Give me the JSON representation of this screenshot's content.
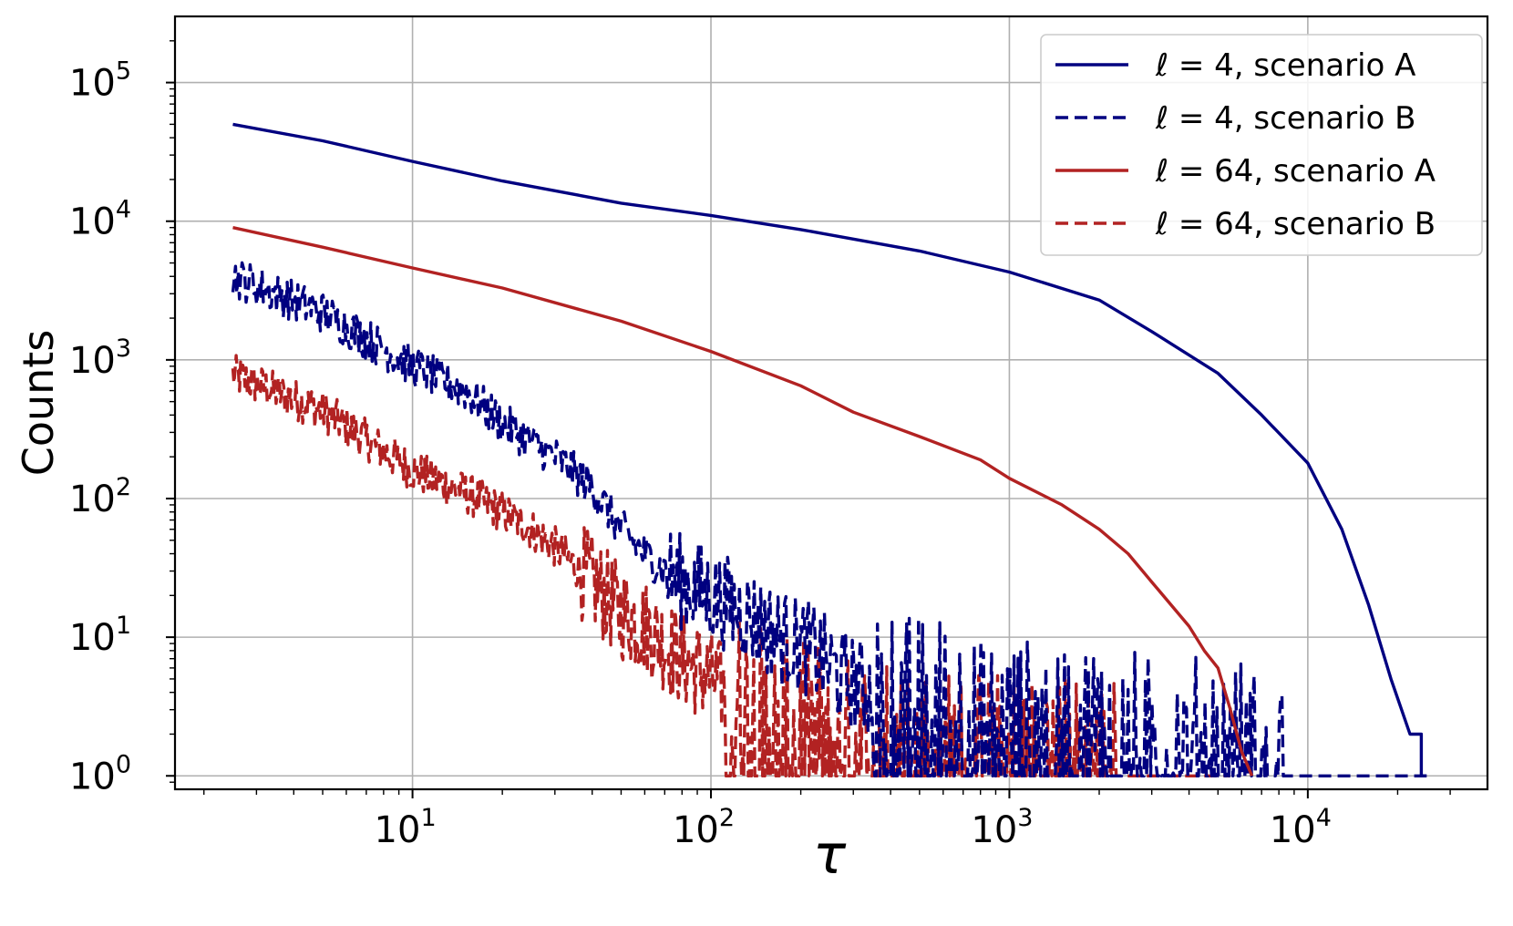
{
  "chart_data": {
    "type": "line",
    "xlabel": "τ",
    "ylabel": "Counts",
    "xscale": "log",
    "yscale": "log",
    "xlim": [
      1.6,
      40000
    ],
    "ylim": [
      0.8,
      300000
    ],
    "grid": true,
    "legend_position": "top-right",
    "x_ticks": [
      {
        "base": "10",
        "exp": "1",
        "value": 10
      },
      {
        "base": "10",
        "exp": "2",
        "value": 100
      },
      {
        "base": "10",
        "exp": "3",
        "value": 1000
      },
      {
        "base": "10",
        "exp": "4",
        "value": 10000
      }
    ],
    "y_ticks": [
      {
        "base": "10",
        "exp": "0",
        "value": 1
      },
      {
        "base": "10",
        "exp": "1",
        "value": 10
      },
      {
        "base": "10",
        "exp": "2",
        "value": 100
      },
      {
        "base": "10",
        "exp": "3",
        "value": 1000
      },
      {
        "base": "10",
        "exp": "4",
        "value": 10000
      },
      {
        "base": "10",
        "exp": "5",
        "value": 100000
      }
    ],
    "series": [
      {
        "name": "ℓ = 4, scenario A",
        "color": "#000080",
        "dash": "solid",
        "x": [
          2.5,
          5,
          10,
          20,
          50,
          100,
          200,
          500,
          1000,
          2000,
          3000,
          5000,
          7000,
          10000,
          13000,
          16000,
          19000,
          22000,
          24000,
          24000,
          25000
        ],
        "y": [
          50000,
          38000,
          27000,
          19500,
          13500,
          11000,
          8700,
          6100,
          4300,
          2700,
          1600,
          800,
          400,
          180,
          60,
          17,
          5,
          2,
          2,
          1,
          1
        ]
      },
      {
        "name": "ℓ = 4, scenario B",
        "color": "#000080",
        "dash": "dashed",
        "x": [
          2.5,
          5,
          10,
          15,
          20,
          30,
          40,
          50,
          60,
          70,
          80,
          100,
          130,
          170,
          220,
          280,
          350,
          450,
          600,
          800,
          1000,
          1500,
          2000,
          3000,
          4000,
          6000,
          8000,
          9000,
          9000,
          12000,
          25000
        ],
        "y": [
          4000,
          2200,
          900,
          600,
          350,
          200,
          120,
          60,
          40,
          30,
          25,
          20,
          15,
          10,
          8,
          5,
          4,
          3,
          3,
          2,
          2,
          2,
          2,
          1.5,
          1.5,
          1.5,
          1.5,
          1.5,
          1,
          1,
          1
        ],
        "noisy": true
      },
      {
        "name": "ℓ = 64, scenario A",
        "color": "#b22222",
        "dash": "solid",
        "x": [
          2.5,
          5,
          10,
          20,
          50,
          100,
          200,
          300,
          500,
          800,
          1000,
          1500,
          2000,
          2500,
          3000,
          4000,
          4500,
          5000,
          5500,
          6000,
          6500
        ],
        "y": [
          9000,
          6500,
          4600,
          3300,
          1900,
          1150,
          650,
          420,
          280,
          190,
          140,
          90,
          60,
          40,
          25,
          12,
          8,
          6,
          3,
          1.5,
          1
        ]
      },
      {
        "name": "ℓ = 64, scenario B",
        "color": "#b22222",
        "dash": "dashed",
        "x": [
          2.5,
          5,
          8,
          10,
          15,
          20,
          25,
          30,
          40,
          50,
          60,
          80,
          100,
          130,
          170,
          220,
          280,
          350,
          450,
          600,
          800,
          1200,
          1800,
          3000,
          5500
        ],
        "y": [
          780,
          430,
          220,
          160,
          110,
          80,
          60,
          45,
          25,
          15,
          12,
          7,
          5,
          3,
          2,
          2,
          1.5,
          1.5,
          1.5,
          1.2,
          1.2,
          1.1,
          1.1,
          1,
          1
        ],
        "noisy": true
      }
    ]
  }
}
